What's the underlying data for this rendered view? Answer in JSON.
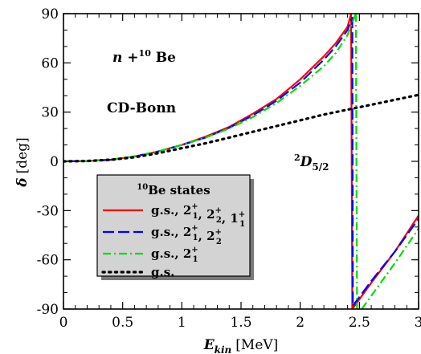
{
  "chart_data": {
    "type": "line",
    "xlabel": "E",
    "xlabel_sub": "kin",
    "xlabel_unit": "[MeV]",
    "ylabel": "δ",
    "ylabel_unit": "[deg]",
    "xlim": [
      0,
      3
    ],
    "ylim": [
      -90,
      90
    ],
    "x_ticks": [
      "0",
      "0.5",
      "1",
      "1.5",
      "2",
      "2.5",
      "3"
    ],
    "y_ticks": [
      "-90",
      "-60",
      "-30",
      "0",
      "30",
      "60",
      "90"
    ],
    "annotations": {
      "reaction": "n +¹⁰ Be",
      "reaction_n": "n",
      "reaction_plus": " +",
      "reaction_sup": "10",
      "reaction_be": " Be",
      "potential": "CD-Bonn",
      "partial_wave_sup": "2",
      "partial_wave": "D",
      "partial_wave_sub": "5/2"
    },
    "legend": {
      "title_sup": "10",
      "title": "Be states",
      "placement": "lower-left"
    },
    "series": [
      {
        "name": "g.s., 2₁⁺, 2₂⁺, 1₁⁺",
        "color": "#ff0000",
        "dash": "solid",
        "branches": [
          {
            "x": [
              0,
              0.2,
              0.4,
              0.6,
              0.8,
              1.0,
              1.2,
              1.4,
              1.6,
              1.8,
              2.0,
              2.2,
              2.3,
              2.4,
              2.43
            ],
            "y": [
              0,
              0.2,
              1,
              3,
              6,
              10,
              15,
              21,
              29,
              38,
              50,
              64,
              72,
              82,
              90
            ]
          },
          {
            "x": [
              2.43,
              2.44
            ],
            "y": [
              90,
              -90
            ]
          },
          {
            "x": [
              2.44,
              2.6,
              2.8,
              3.0
            ],
            "y": [
              -90,
              -74,
              -55,
              -33
            ]
          }
        ]
      },
      {
        "name": "g.s., 2₁⁺, 2₂⁺",
        "color": "#0000ff",
        "dash": "long-dash",
        "branches": [
          {
            "x": [
              0,
              0.2,
              0.4,
              0.6,
              0.8,
              1.0,
              1.2,
              1.4,
              1.6,
              1.8,
              2.0,
              2.2,
              2.3,
              2.4,
              2.44
            ],
            "y": [
              0,
              0.2,
              1,
              3,
              6,
              10,
              14.5,
              20.5,
              28,
              37,
              48,
              62,
              70,
              80,
              88
            ]
          },
          {
            "x": [
              2.44,
              2.445
            ],
            "y": [
              88,
              -88
            ]
          },
          {
            "x": [
              2.445,
              2.6,
              2.8,
              3.0
            ],
            "y": [
              -88,
              -73,
              -55,
              -35
            ]
          }
        ]
      },
      {
        "name": "g.s., 2₁⁺",
        "color": "#00dd00",
        "dash": "dash-dot",
        "branches": [
          {
            "x": [
              0,
              0.2,
              0.4,
              0.6,
              0.8,
              1.0,
              1.2,
              1.4,
              1.6,
              1.8,
              2.0,
              2.2,
              2.3,
              2.4,
              2.47
            ],
            "y": [
              0,
              0.2,
              1,
              3,
              6,
              10,
              14.5,
              20,
              27,
              35.5,
              46,
              58,
              66,
              77,
              90
            ]
          },
          {
            "x": [
              2.47,
              2.48
            ],
            "y": [
              90,
              -90
            ]
          },
          {
            "x": [
              2.52,
              2.6,
              2.8,
              3.0
            ],
            "y": [
              -90,
              -82,
              -62,
              -41
            ]
          }
        ]
      },
      {
        "name": "g.s.",
        "color": "#000000",
        "dash": "dotted",
        "branches": [
          {
            "x": [
              0,
              0.2,
              0.4,
              0.6,
              0.8,
              1.0,
              1.2,
              1.4,
              1.6,
              1.8,
              2.0,
              2.2,
              2.4,
              2.6,
              2.8,
              3.0
            ],
            "y": [
              0,
              0.2,
              1,
              2.5,
              5,
              8,
              11,
              14.5,
              18,
              21.5,
              25,
              28.5,
              31.5,
              34.5,
              37.5,
              40.5
            ]
          }
        ]
      }
    ]
  }
}
